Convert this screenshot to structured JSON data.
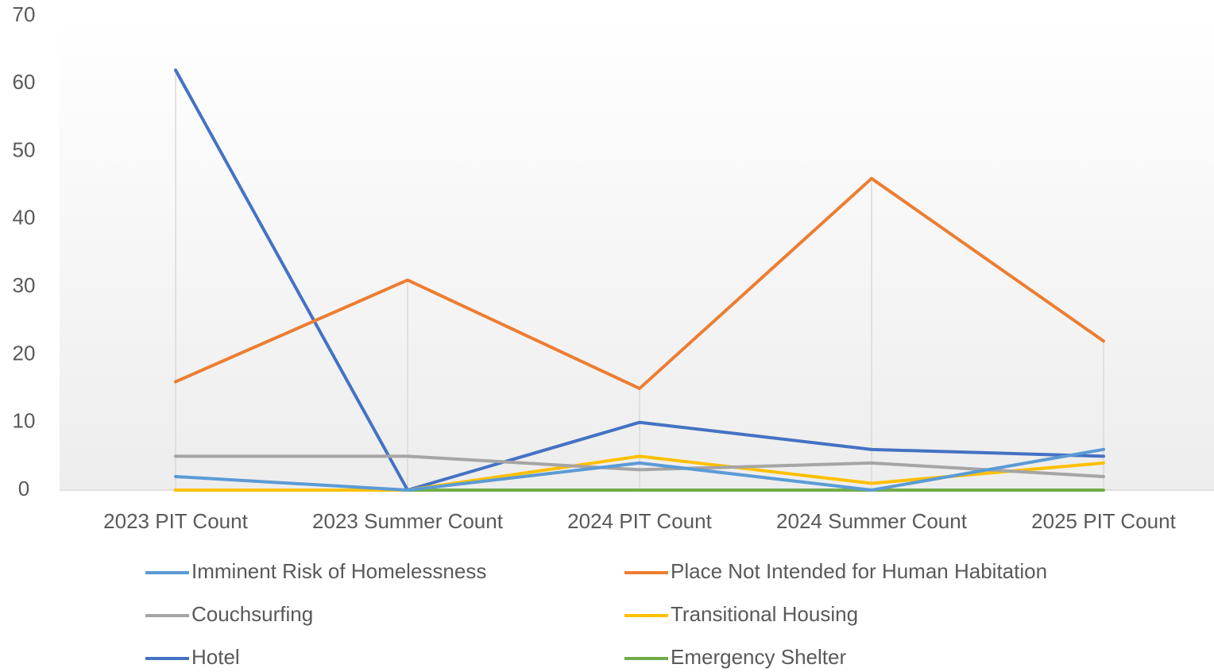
{
  "chart_data": {
    "type": "line",
    "categories": [
      "2023 PIT Count",
      "2023 Summer Count",
      "2024 PIT Count",
      "2024 Summer Count",
      "2025 PIT Count"
    ],
    "series": [
      {
        "name": "Imminent Risk of Homelessness",
        "color": "#5b9bd5",
        "values": [
          2,
          0,
          4,
          0,
          6
        ]
      },
      {
        "name": "Place Not Intended for Human Habitation",
        "color": "#ed7d31",
        "values": [
          16,
          31,
          15,
          46,
          22
        ]
      },
      {
        "name": "Couchsurfing",
        "color": "#a5a5a5",
        "values": [
          5,
          5,
          3,
          4,
          2
        ]
      },
      {
        "name": "Transitional Housing",
        "color": "#ffc000",
        "values": [
          0,
          0,
          5,
          1,
          4
        ]
      },
      {
        "name": "Hotel",
        "color": "#4472c4",
        "values": [
          62,
          0,
          10,
          6,
          5
        ]
      },
      {
        "name": "Emergency Shelter",
        "color": "#70ad47",
        "values": [
          0,
          0,
          0,
          0,
          0
        ]
      }
    ],
    "ylim": [
      0,
      70
    ],
    "yticks": [
      0,
      10,
      20,
      30,
      40,
      50,
      60,
      70
    ],
    "drop_lines": true,
    "legend": "bottom"
  }
}
